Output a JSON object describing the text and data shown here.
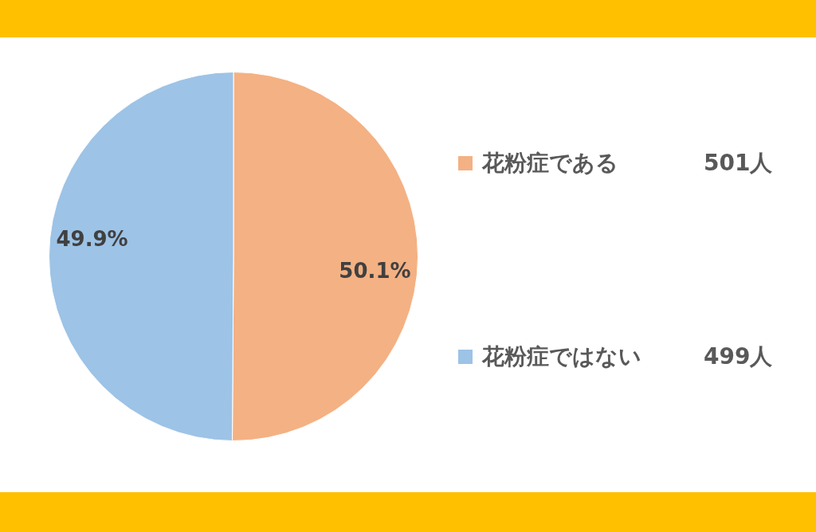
{
  "chart_data": {
    "type": "pie",
    "categories": [
      "花粉症である",
      "花粉症ではない"
    ],
    "values": [
      50.1,
      49.9
    ],
    "colors": [
      "#f4b183",
      "#9dc3e6"
    ],
    "value_labels": [
      "50.1%",
      "49.9%"
    ],
    "annotations": [
      "501人",
      "499人"
    ],
    "legend": "right"
  }
}
